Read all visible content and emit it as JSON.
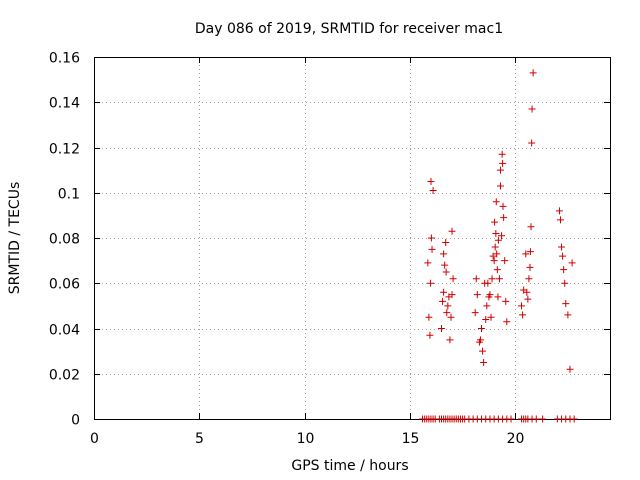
{
  "chart_data": {
    "type": "scatter",
    "title": "Day 086 of 2019, SRMTID for receiver mac1",
    "xlabel": "GPS time / hours",
    "ylabel": "SRMTID / TECUs",
    "xlim": [
      0,
      24.5
    ],
    "ylim": [
      0,
      0.16
    ],
    "xticks": [
      0,
      5,
      10,
      15,
      20
    ],
    "yticks": [
      0,
      0.02,
      0.04,
      0.06,
      0.08,
      0.1,
      0.12,
      0.14,
      0.16
    ],
    "xtick_labels": [
      "0",
      "5",
      "10",
      "15",
      "20"
    ],
    "ytick_labels": [
      "0",
      "0.02",
      "0.04",
      "0.06",
      "0.08",
      "0.1",
      "0.12",
      "0.14",
      "0.16"
    ],
    "grid": true,
    "marker": "plus",
    "color": "#d00000",
    "series": [
      {
        "name": "SRMTID",
        "x": [
          15.85,
          15.9,
          15.95,
          15.98,
          16.0,
          16.02,
          16.05,
          16.1,
          16.5,
          16.55,
          16.6,
          16.6,
          16.65,
          16.7,
          16.72,
          16.75,
          16.8,
          16.85,
          16.9,
          16.95,
          17.0,
          17.0,
          17.05,
          18.1,
          18.15,
          18.2,
          18.3,
          18.35,
          18.4,
          18.45,
          18.5,
          18.55,
          18.6,
          18.65,
          18.7,
          18.75,
          18.8,
          18.85,
          18.9,
          18.95,
          19.0,
          19.02,
          19.05,
          19.08,
          19.1,
          19.12,
          19.15,
          19.18,
          19.2,
          19.25,
          19.3,
          19.3,
          19.35,
          19.38,
          19.4,
          19.42,
          19.45,
          19.5,
          19.55,
          19.6,
          20.3,
          20.35,
          20.4,
          20.5,
          20.55,
          20.6,
          20.65,
          20.7,
          20.72,
          20.75,
          20.78,
          20.8,
          20.85,
          22.1,
          22.15,
          22.2,
          22.25,
          22.3,
          22.35,
          22.4,
          22.5,
          22.6,
          22.7,
          15.6,
          15.7,
          15.8,
          15.9,
          16.0,
          16.1,
          16.2,
          16.4,
          16.5,
          16.6,
          16.7,
          16.8,
          16.9,
          17.0,
          17.1,
          17.2,
          17.3,
          17.4,
          17.5,
          17.6,
          17.8,
          18.0,
          18.2,
          18.4,
          18.6,
          18.8,
          19.0,
          19.2,
          19.4,
          19.6,
          19.8,
          20.3,
          20.4,
          20.5,
          20.6,
          20.8,
          21.0,
          21.3,
          22.0,
          22.2,
          22.4,
          22.6,
          22.8
        ],
        "y": [
          0.069,
          0.045,
          0.037,
          0.06,
          0.105,
          0.08,
          0.075,
          0.101,
          0.04,
          0.052,
          0.056,
          0.073,
          0.068,
          0.078,
          0.065,
          0.047,
          0.05,
          0.054,
          0.035,
          0.045,
          0.055,
          0.083,
          0.062,
          0.047,
          0.062,
          0.055,
          0.034,
          0.035,
          0.04,
          0.03,
          0.025,
          0.06,
          0.044,
          0.05,
          0.06,
          0.054,
          0.055,
          0.045,
          0.062,
          0.072,
          0.07,
          0.087,
          0.076,
          0.082,
          0.096,
          0.073,
          0.066,
          0.054,
          0.079,
          0.062,
          0.103,
          0.11,
          0.081,
          0.117,
          0.113,
          0.094,
          0.089,
          0.07,
          0.052,
          0.043,
          0.05,
          0.046,
          0.057,
          0.073,
          0.056,
          0.053,
          0.062,
          0.067,
          0.074,
          0.085,
          0.122,
          0.137,
          0.153,
          0.092,
          0.088,
          0.076,
          0.072,
          0.066,
          0.06,
          0.051,
          0.046,
          0.022,
          0.069,
          0,
          0,
          0,
          0,
          0,
          0,
          0,
          0,
          0,
          0,
          0,
          0,
          0,
          0,
          0,
          0,
          0,
          0,
          0,
          0,
          0,
          0,
          0,
          0,
          0,
          0,
          0,
          0,
          0,
          0,
          0,
          0,
          0,
          0,
          0,
          0,
          0,
          0,
          0,
          0,
          0,
          0,
          0
        ]
      }
    ]
  }
}
